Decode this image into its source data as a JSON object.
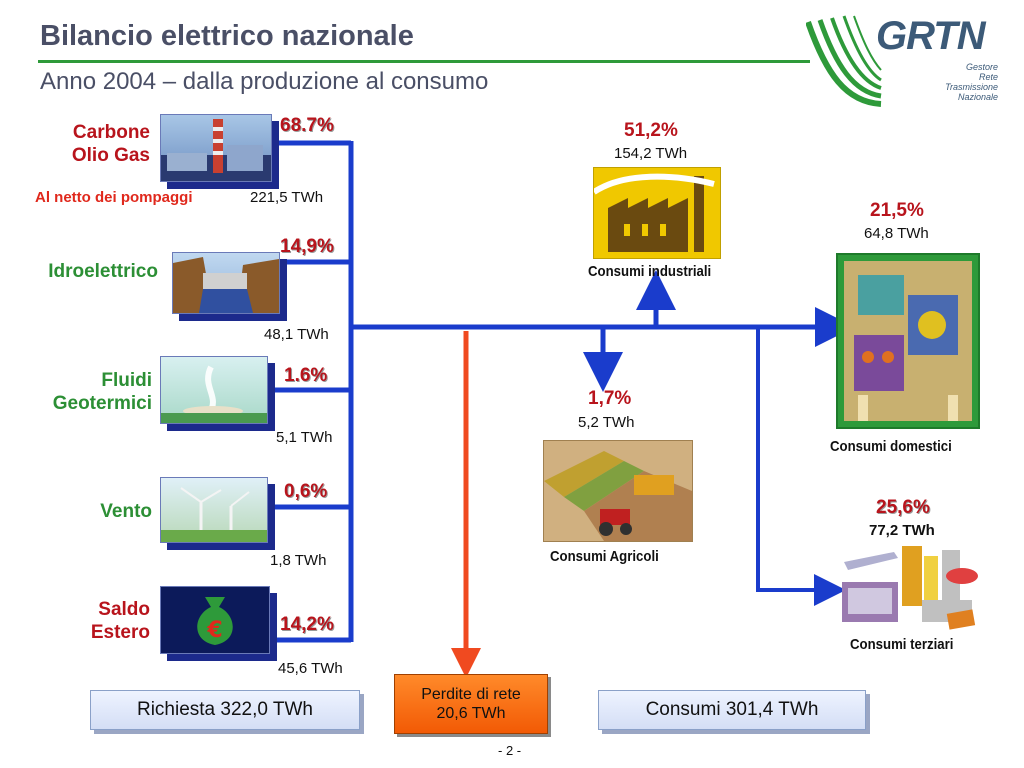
{
  "header": {
    "title": "Bilancio elettrico nazionale",
    "subtitle": "Anno 2004 – dalla produzione al consumo"
  },
  "logo": {
    "name": "GRTN",
    "line1": "Gestore",
    "line2": "Rete",
    "line3": "Trasmissione",
    "line4": "Nazionale"
  },
  "sources": [
    {
      "label_line1": "Carbone",
      "label_line2": "Olio Gas",
      "pct": "68.7%",
      "twh": "221,5 TWh",
      "note": "Al netto dei pompaggi",
      "icon": "thermal-plant-icon"
    },
    {
      "label_line1": "Idroelettrico",
      "label_line2": "",
      "pct": "14,9%",
      "twh": "48,1 TWh",
      "icon": "dam-icon"
    },
    {
      "label_line1": "Fluidi",
      "label_line2": "Geotermici",
      "pct": "1.6%",
      "twh": "5,1 TWh",
      "icon": "geothermal-icon"
    },
    {
      "label_line1": "Vento",
      "label_line2": "",
      "pct": "0,6%",
      "twh": "1,8 TWh",
      "icon": "wind-turbine-icon"
    },
    {
      "label_line1": "Saldo",
      "label_line2": "Estero",
      "pct": "14,2%",
      "twh": "45,6 TWh",
      "icon": "euro-bag-icon"
    }
  ],
  "consumers": {
    "industrial": {
      "pct": "51,2%",
      "twh": "154,2 TWh",
      "label": "Consumi industriali",
      "icon": "factory-icon"
    },
    "domestic": {
      "pct": "21,5%",
      "twh": "64,8 TWh",
      "label": "Consumi domestici",
      "icon": "household-icon"
    },
    "agricultural": {
      "pct": "1,7%",
      "twh": "5,2 TWh",
      "label": "Consumi Agricoli",
      "icon": "tractor-icon"
    },
    "tertiary": {
      "pct": "25,6%",
      "twh": "77,2 TWh",
      "label": "Consumi  terziari",
      "icon": "services-icon"
    }
  },
  "totals": {
    "demand": "Richiesta  322,0 TWh",
    "losses_line1": "Perdite di rete",
    "losses_line2": "20,6 TWh",
    "consumption": "Consumi  301,4 TWh"
  },
  "page_number": "- 2 -",
  "colors": {
    "flow_blue": "#1a3ccc",
    "loss_red": "#f04a20",
    "header_green": "#2e9a3a",
    "label_red": "#b8141c",
    "label_green": "#2c8f35"
  }
}
